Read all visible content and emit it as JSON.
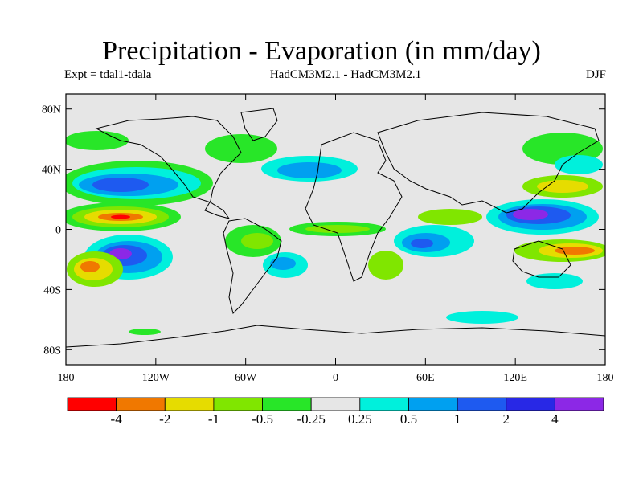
{
  "title": "Precipitation - Evaporation (in mm/day)",
  "subtitle_left": "Expt = tdal1-tdala",
  "subtitle_center": "HadCM3M2.1 - HadCM3M2.1",
  "subtitle_right": "DJF",
  "map": {
    "projection": "equirectangular",
    "lon_range": [
      -180,
      180
    ],
    "lat_range": [
      -90,
      90
    ],
    "background_color": "#e6e6e6",
    "lat_ticks": [
      {
        "value": 80,
        "label": "80N"
      },
      {
        "value": 40,
        "label": "40N"
      },
      {
        "value": 0,
        "label": "0"
      },
      {
        "value": -40,
        "label": "40S"
      },
      {
        "value": -80,
        "label": "80S"
      }
    ],
    "lon_ticks": [
      {
        "value": -180,
        "label": "180"
      },
      {
        "value": -120,
        "label": "120W"
      },
      {
        "value": -60,
        "label": "60W"
      },
      {
        "value": 0,
        "label": "0"
      },
      {
        "value": 60,
        "label": "60E"
      },
      {
        "value": 120,
        "label": "120E"
      },
      {
        "value": 180,
        "label": "180"
      }
    ]
  },
  "colorbar": {
    "colors": [
      "#ff0000",
      "#f07800",
      "#e6dc00",
      "#80e600",
      "#28e628",
      "#e6e6e6",
      "#00f0dc",
      "#00a0f0",
      "#1e5af0",
      "#2828e6",
      "#8c28e6"
    ],
    "labels": [
      "-4",
      "-2",
      "-1",
      "-0.5",
      "-0.25",
      "0.25",
      "0.5",
      "1",
      "2",
      "4"
    ]
  }
}
